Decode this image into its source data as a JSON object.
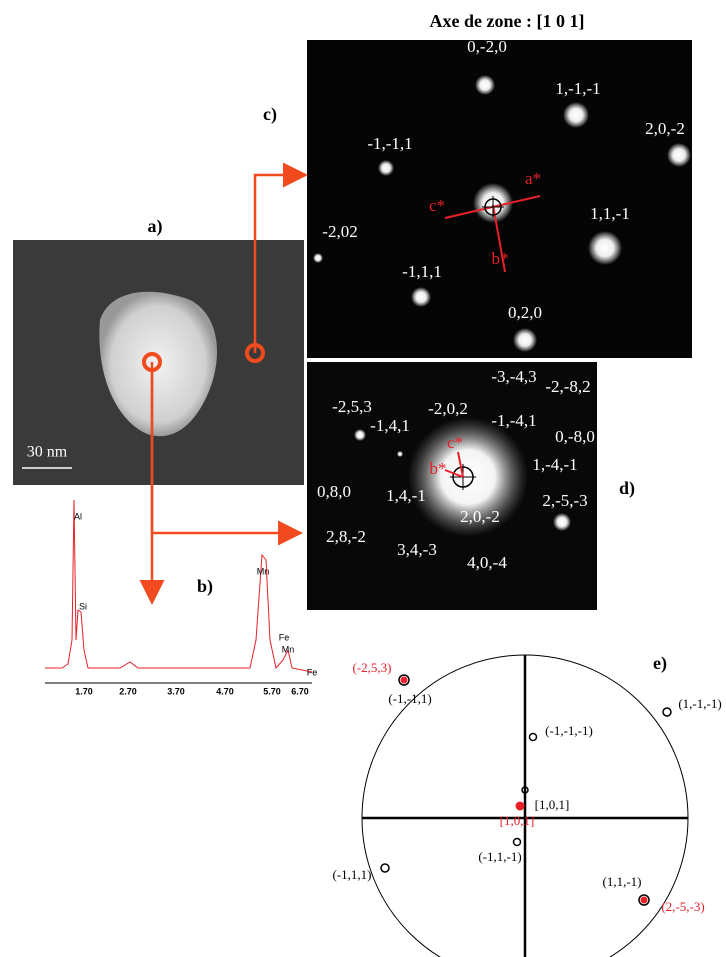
{
  "title": "Axe de zone : [1 0 1]",
  "panel_a": {
    "label": "a)",
    "scale_bar": "30 nm"
  },
  "panel_b": {
    "label": "b)",
    "peaks": [
      "Al",
      "Si",
      "Mn",
      "Fe",
      "Mn",
      "Fe"
    ],
    "xticks": [
      "1.70",
      "2.70",
      "3.70",
      "4.70",
      "5.70",
      "6.70"
    ]
  },
  "panel_c": {
    "label": "c)",
    "spots": [
      "0,-2,0",
      "1,-1,-1",
      "2,0,-2",
      "-1,-1,1",
      "1,1,-1",
      "-2,02",
      "-1,1,1",
      "0,2,0"
    ],
    "axes": [
      "c*",
      "a*",
      "b*"
    ]
  },
  "panel_d": {
    "label": "d)",
    "spots": [
      "-3,-4,3",
      "-2,-8,2",
      "-2,5,3",
      "-2,0,2",
      "-1,-4,1",
      "0,-8,0",
      "-1,4,1",
      "1,-4,-1",
      "0,8,0",
      "1,4,-1",
      "2,0,-2",
      "2,-5,-3",
      "2,8,-2",
      "3,4,-3",
      "4,0,-4"
    ],
    "axes": [
      "c*",
      "b*"
    ]
  },
  "panel_e": {
    "label": "e)",
    "poles": [
      "(-2,5,3)",
      "(-1,-1,1)",
      "(1,-1,-1)",
      "(-1,-1,-1)",
      "[1,0,1]",
      "[1,0,1]",
      "(-1,1,-1)",
      "(-1,1,1)",
      "(1,1,-1)",
      "(2,-5,-3)"
    ]
  }
}
